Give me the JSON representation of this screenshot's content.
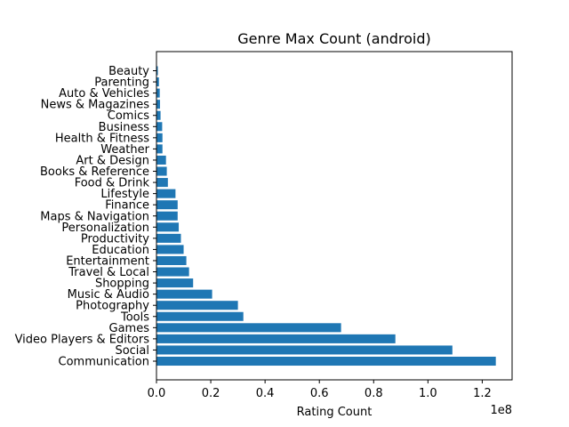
{
  "chart_data": {
    "type": "bar",
    "orientation": "horizontal",
    "title": "Genre Max Count (android)",
    "xlabel": "Rating Count",
    "ylabel": "",
    "x_offset_label": "1e8",
    "xlim": [
      0,
      131000000
    ],
    "x_tick_values": [
      0,
      20000000,
      40000000,
      60000000,
      80000000,
      100000000,
      120000000
    ],
    "x_tick_labels": [
      "0.0",
      "0.2",
      "0.4",
      "0.6",
      "0.8",
      "1.0",
      "1.2"
    ],
    "categories": [
      "Communication",
      "Social",
      "Video Players & Editors",
      "Games",
      "Tools",
      "Photography",
      "Music & Audio",
      "Shopping",
      "Travel & Local",
      "Entertainment",
      "Education",
      "Productivity",
      "Personalization",
      "Maps & Navigation",
      "Finance",
      "Lifestyle",
      "Food & Drink",
      "Books & Reference",
      "Art & Design",
      "Weather",
      "Health & Fitness",
      "Business",
      "Comics",
      "News & Magazines",
      "Auto & Vehicles",
      "Parenting",
      "Beauty"
    ],
    "values": [
      125000000,
      109000000,
      88000000,
      68000000,
      32000000,
      30000000,
      20500000,
      13500000,
      12000000,
      11000000,
      10000000,
      9000000,
      8200000,
      7800000,
      7800000,
      7000000,
      4200000,
      3800000,
      3500000,
      2200000,
      2200000,
      2100000,
      1500000,
      1300000,
      1200000,
      900000,
      500000
    ],
    "bar_color": "#1f77b4",
    "grid": false
  }
}
